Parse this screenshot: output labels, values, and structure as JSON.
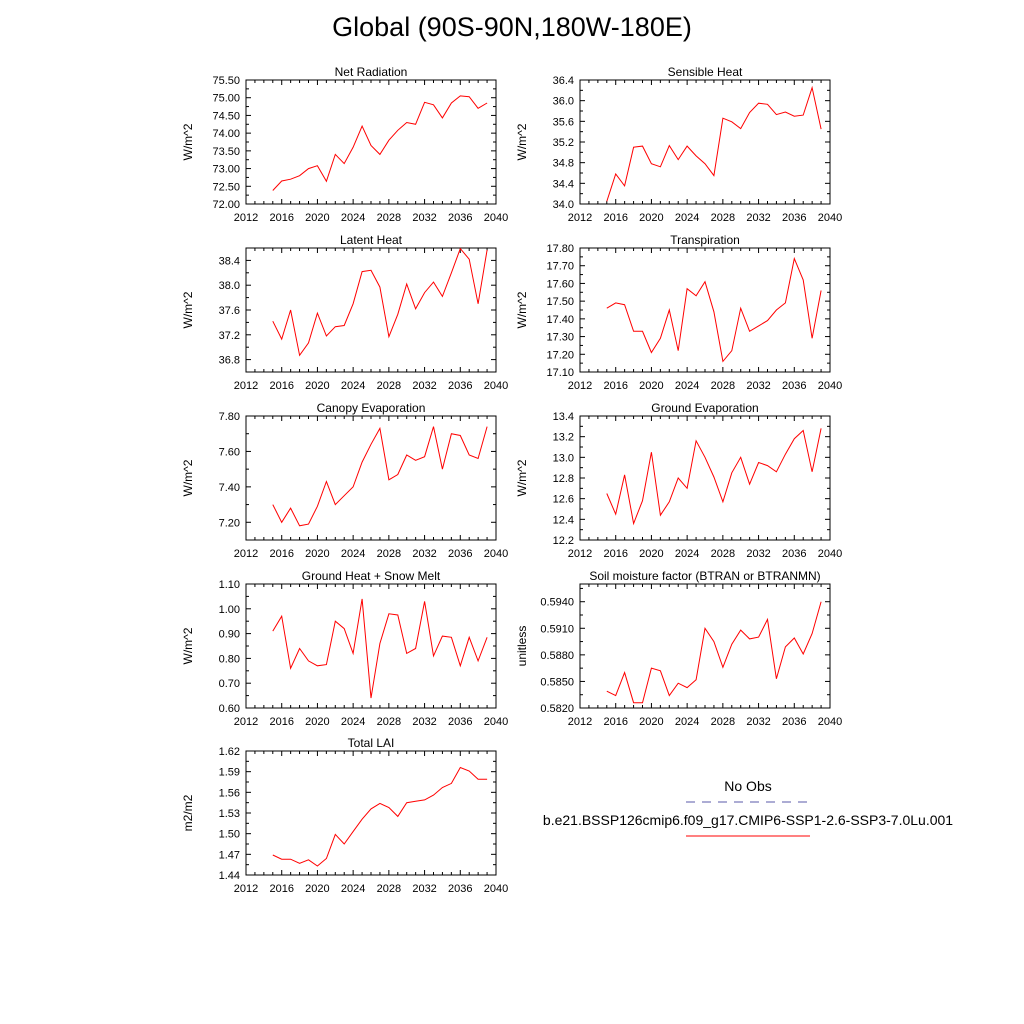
{
  "title": "Global (90S-90N,180W-180E)",
  "colors": {
    "series": "#ff0000",
    "obs": "#5a5aa8",
    "axis": "#000000"
  },
  "legend": {
    "obs_label": "No Obs",
    "series_label": "b.e21.BSSP126cmip6.f09_g17.CMIP6-SSP1-2.6-SSP3-7.0Lu.001"
  },
  "chart_data": [
    {
      "type": "line",
      "title": "Net Radiation",
      "ylabel": "W/m^2",
      "xlim": [
        2012,
        2040
      ],
      "xticks": [
        "2012",
        "2016",
        "2020",
        "2024",
        "2028",
        "2032",
        "2036",
        "2040"
      ],
      "ylim": [
        72.0,
        75.5
      ],
      "yticks": [
        "72.00",
        "72.50",
        "73.00",
        "73.50",
        "74.00",
        "74.50",
        "75.00",
        "75.50"
      ],
      "x": [
        2015,
        2016,
        2017,
        2018,
        2019,
        2020,
        2021,
        2022,
        2023,
        2024,
        2025,
        2026,
        2027,
        2028,
        2029,
        2030,
        2031,
        2032,
        2033,
        2034,
        2035,
        2036,
        2037,
        2038,
        2039
      ],
      "y": [
        72.38,
        72.65,
        72.7,
        72.8,
        73.0,
        73.08,
        72.64,
        73.4,
        73.14,
        73.6,
        74.2,
        73.65,
        73.4,
        73.8,
        74.08,
        74.3,
        74.25,
        74.87,
        74.8,
        74.43,
        74.85,
        75.05,
        75.03,
        74.7,
        74.85
      ]
    },
    {
      "type": "line",
      "title": "Sensible Heat",
      "ylabel": "W/m^2",
      "xlim": [
        2012,
        2040
      ],
      "xticks": [
        "2012",
        "2016",
        "2020",
        "2024",
        "2028",
        "2032",
        "2036",
        "2040"
      ],
      "ylim": [
        34.0,
        36.4
      ],
      "yticks": [
        "34.0",
        "34.4",
        "34.8",
        "35.2",
        "35.6",
        "36.0",
        "36.4"
      ],
      "x": [
        2015,
        2016,
        2017,
        2018,
        2019,
        2020,
        2021,
        2022,
        2023,
        2024,
        2025,
        2026,
        2027,
        2028,
        2029,
        2030,
        2031,
        2032,
        2033,
        2034,
        2035,
        2036,
        2037,
        2038,
        2039
      ],
      "y": [
        34.05,
        34.58,
        34.35,
        35.1,
        35.12,
        34.78,
        34.72,
        35.13,
        34.86,
        35.12,
        34.93,
        34.78,
        34.55,
        35.66,
        35.59,
        35.46,
        35.77,
        35.95,
        35.93,
        35.73,
        35.78,
        35.7,
        35.72,
        36.25,
        35.45
      ]
    },
    {
      "type": "line",
      "title": "Latent Heat",
      "ylabel": "W/m^2",
      "xlim": [
        2012,
        2040
      ],
      "xticks": [
        "2012",
        "2016",
        "2020",
        "2024",
        "2028",
        "2032",
        "2036",
        "2040"
      ],
      "ylim": [
        36.6,
        38.6
      ],
      "yticks": [
        "36.8",
        "37.2",
        "37.6",
        "38.0",
        "38.4"
      ],
      "x": [
        2015,
        2016,
        2017,
        2018,
        2019,
        2020,
        2021,
        2022,
        2023,
        2024,
        2025,
        2026,
        2027,
        2028,
        2029,
        2030,
        2031,
        2032,
        2033,
        2034,
        2035,
        2036,
        2037,
        2038,
        2039
      ],
      "y": [
        37.42,
        37.13,
        37.6,
        36.87,
        37.07,
        37.55,
        37.18,
        37.33,
        37.35,
        37.7,
        38.22,
        38.24,
        37.97,
        37.17,
        37.53,
        38.02,
        37.62,
        37.88,
        38.05,
        37.82,
        38.2,
        38.59,
        38.42,
        37.7,
        38.57
      ]
    },
    {
      "type": "line",
      "title": "Transpiration",
      "ylabel": "W/m^2",
      "xlim": [
        2012,
        2040
      ],
      "xticks": [
        "2012",
        "2016",
        "2020",
        "2024",
        "2028",
        "2032",
        "2036",
        "2040"
      ],
      "ylim": [
        17.1,
        17.8
      ],
      "yticks": [
        "17.10",
        "17.20",
        "17.30",
        "17.40",
        "17.50",
        "17.60",
        "17.70",
        "17.80"
      ],
      "x": [
        2015,
        2016,
        2017,
        2018,
        2019,
        2020,
        2021,
        2022,
        2023,
        2024,
        2025,
        2026,
        2027,
        2028,
        2029,
        2030,
        2031,
        2032,
        2033,
        2034,
        2035,
        2036,
        2037,
        2038,
        2039
      ],
      "y": [
        17.46,
        17.49,
        17.48,
        17.33,
        17.33,
        17.21,
        17.29,
        17.45,
        17.22,
        17.57,
        17.53,
        17.61,
        17.44,
        17.16,
        17.22,
        17.46,
        17.33,
        17.36,
        17.39,
        17.45,
        17.49,
        17.74,
        17.62,
        17.29,
        17.56
      ]
    },
    {
      "type": "line",
      "title": "Canopy Evaporation",
      "ylabel": "W/m^2",
      "xlim": [
        2012,
        2040
      ],
      "xticks": [
        "2012",
        "2016",
        "2020",
        "2024",
        "2028",
        "2032",
        "2036",
        "2040"
      ],
      "ylim": [
        7.1,
        7.8
      ],
      "yticks": [
        "7.20",
        "7.40",
        "7.60",
        "7.80"
      ],
      "x": [
        2015,
        2016,
        2017,
        2018,
        2019,
        2020,
        2021,
        2022,
        2023,
        2024,
        2025,
        2026,
        2027,
        2028,
        2029,
        2030,
        2031,
        2032,
        2033,
        2034,
        2035,
        2036,
        2037,
        2038,
        2039
      ],
      "y": [
        7.3,
        7.2,
        7.28,
        7.18,
        7.19,
        7.29,
        7.43,
        7.3,
        7.35,
        7.4,
        7.54,
        7.64,
        7.73,
        7.44,
        7.47,
        7.58,
        7.55,
        7.57,
        7.74,
        7.5,
        7.7,
        7.69,
        7.58,
        7.56,
        7.74
      ]
    },
    {
      "type": "line",
      "title": "Ground Evaporation",
      "ylabel": "W/m^2",
      "xlim": [
        2012,
        2040
      ],
      "xticks": [
        "2012",
        "2016",
        "2020",
        "2024",
        "2028",
        "2032",
        "2036",
        "2040"
      ],
      "ylim": [
        12.2,
        13.4
      ],
      "yticks": [
        "12.2",
        "12.4",
        "12.6",
        "12.8",
        "13.0",
        "13.2",
        "13.4"
      ],
      "x": [
        2015,
        2016,
        2017,
        2018,
        2019,
        2020,
        2021,
        2022,
        2023,
        2024,
        2025,
        2026,
        2027,
        2028,
        2029,
        2030,
        2031,
        2032,
        2033,
        2034,
        2035,
        2036,
        2037,
        2038,
        2039
      ],
      "y": [
        12.65,
        12.45,
        12.83,
        12.36,
        12.58,
        13.05,
        12.44,
        12.57,
        12.8,
        12.7,
        13.16,
        13.0,
        12.81,
        12.57,
        12.85,
        13.0,
        12.74,
        12.95,
        12.92,
        12.86,
        13.03,
        13.18,
        13.26,
        12.86,
        13.28
      ]
    },
    {
      "type": "line",
      "title": "Ground Heat + Snow Melt",
      "ylabel": "W/m^2",
      "xlim": [
        2012,
        2040
      ],
      "xticks": [
        "2012",
        "2016",
        "2020",
        "2024",
        "2028",
        "2032",
        "2036",
        "2040"
      ],
      "ylim": [
        0.6,
        1.1
      ],
      "yticks": [
        "0.60",
        "0.70",
        "0.80",
        "0.90",
        "1.00",
        "1.10"
      ],
      "x": [
        2015,
        2016,
        2017,
        2018,
        2019,
        2020,
        2021,
        2022,
        2023,
        2024,
        2025,
        2026,
        2027,
        2028,
        2029,
        2030,
        2031,
        2032,
        2033,
        2034,
        2035,
        2036,
        2037,
        2038,
        2039
      ],
      "y": [
        0.91,
        0.97,
        0.76,
        0.84,
        0.79,
        0.77,
        0.775,
        0.95,
        0.92,
        0.82,
        1.04,
        0.64,
        0.86,
        0.98,
        0.975,
        0.82,
        0.84,
        1.03,
        0.81,
        0.89,
        0.885,
        0.77,
        0.885,
        0.79,
        0.885
      ]
    },
    {
      "type": "line",
      "title": "Soil moisture factor (BTRAN or BTRANMN)",
      "ylabel": "unitless",
      "xlim": [
        2012,
        2040
      ],
      "xticks": [
        "2012",
        "2016",
        "2020",
        "2024",
        "2028",
        "2032",
        "2036",
        "2040"
      ],
      "ylim": [
        0.582,
        0.596
      ],
      "yticks": [
        "0.5820",
        "0.5850",
        "0.5880",
        "0.5910",
        "0.5940"
      ],
      "x": [
        2015,
        2016,
        2017,
        2018,
        2019,
        2020,
        2021,
        2022,
        2023,
        2024,
        2025,
        2026,
        2027,
        2028,
        2029,
        2030,
        2031,
        2032,
        2033,
        2034,
        2035,
        2036,
        2037,
        2038,
        2039
      ],
      "y": [
        0.5839,
        0.5834,
        0.586,
        0.5826,
        0.5826,
        0.5865,
        0.5862,
        0.5834,
        0.5848,
        0.5843,
        0.5852,
        0.591,
        0.5895,
        0.5866,
        0.5892,
        0.5908,
        0.5898,
        0.59,
        0.592,
        0.5853,
        0.5889,
        0.5899,
        0.5881,
        0.5904,
        0.594
      ]
    },
    {
      "type": "line",
      "title": "Total LAI",
      "ylabel": "m2/m2",
      "xlim": [
        2012,
        2040
      ],
      "xticks": [
        "2012",
        "2016",
        "2020",
        "2024",
        "2028",
        "2032",
        "2036",
        "2040"
      ],
      "ylim": [
        1.44,
        1.62
      ],
      "yticks": [
        "1.44",
        "1.47",
        "1.50",
        "1.53",
        "1.56",
        "1.59",
        "1.62"
      ],
      "x": [
        2015,
        2016,
        2017,
        2018,
        2019,
        2020,
        2021,
        2022,
        2023,
        2024,
        2025,
        2026,
        2027,
        2028,
        2029,
        2030,
        2031,
        2032,
        2033,
        2034,
        2035,
        2036,
        2037,
        2038,
        2039
      ],
      "y": [
        1.469,
        1.463,
        1.463,
        1.457,
        1.462,
        1.453,
        1.464,
        1.499,
        1.485,
        1.503,
        1.521,
        1.536,
        1.544,
        1.538,
        1.525,
        1.545,
        1.547,
        1.549,
        1.556,
        1.567,
        1.573,
        1.596,
        1.591,
        1.579,
        1.579
      ]
    }
  ]
}
